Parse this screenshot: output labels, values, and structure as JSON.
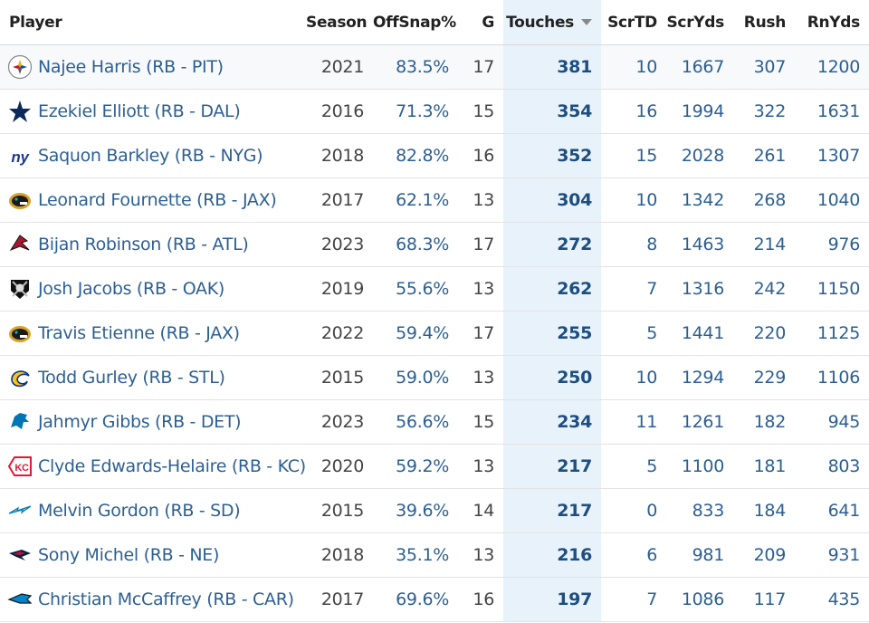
{
  "headers": {
    "player": "Player",
    "season": "Season",
    "offsnap": "OffSnap%",
    "g": "G",
    "touches": "Touches",
    "scrtd": "ScrTD",
    "scryds": "ScrYds",
    "rush": "Rush",
    "rnyds": "RnYds"
  },
  "rows": [
    {
      "player": "Najee Harris (RB - PIT)",
      "team_icon": "steelers-logo-icon",
      "season": "2021",
      "offsnap": "83.5%",
      "g": "17",
      "touches": "381",
      "scrtd": "10",
      "scryds": "1667",
      "rush": "307",
      "rnyds": "1200"
    },
    {
      "player": "Ezekiel Elliott (RB - DAL)",
      "team_icon": "cowboys-star-icon",
      "season": "2016",
      "offsnap": "71.3%",
      "g": "15",
      "touches": "354",
      "scrtd": "16",
      "scryds": "1994",
      "rush": "322",
      "rnyds": "1631"
    },
    {
      "player": "Saquon Barkley (RB - NYG)",
      "team_icon": "giants-logo-icon",
      "season": "2018",
      "offsnap": "82.8%",
      "g": "16",
      "touches": "352",
      "scrtd": "15",
      "scryds": "2028",
      "rush": "261",
      "rnyds": "1307"
    },
    {
      "player": "Leonard Fournette (RB - JAX)",
      "team_icon": "jaguars-logo-icon",
      "season": "2017",
      "offsnap": "62.1%",
      "g": "13",
      "touches": "304",
      "scrtd": "10",
      "scryds": "1342",
      "rush": "268",
      "rnyds": "1040"
    },
    {
      "player": "Bijan Robinson (RB - ATL)",
      "team_icon": "falcons-logo-icon",
      "season": "2023",
      "offsnap": "68.3%",
      "g": "17",
      "touches": "272",
      "scrtd": "8",
      "scryds": "1463",
      "rush": "214",
      "rnyds": "976"
    },
    {
      "player": "Josh Jacobs (RB - OAK)",
      "team_icon": "raiders-logo-icon",
      "season": "2019",
      "offsnap": "55.6%",
      "g": "13",
      "touches": "262",
      "scrtd": "7",
      "scryds": "1316",
      "rush": "242",
      "rnyds": "1150"
    },
    {
      "player": "Travis Etienne (RB - JAX)",
      "team_icon": "jaguars-logo-icon",
      "season": "2022",
      "offsnap": "59.4%",
      "g": "17",
      "touches": "255",
      "scrtd": "5",
      "scryds": "1441",
      "rush": "220",
      "rnyds": "1125"
    },
    {
      "player": "Todd Gurley (RB - STL)",
      "team_icon": "rams-logo-icon",
      "season": "2015",
      "offsnap": "59.0%",
      "g": "13",
      "touches": "250",
      "scrtd": "10",
      "scryds": "1294",
      "rush": "229",
      "rnyds": "1106"
    },
    {
      "player": "Jahmyr Gibbs (RB - DET)",
      "team_icon": "lions-logo-icon",
      "season": "2023",
      "offsnap": "56.6%",
      "g": "15",
      "touches": "234",
      "scrtd": "11",
      "scryds": "1261",
      "rush": "182",
      "rnyds": "945"
    },
    {
      "player": "Clyde Edwards-Helaire (RB - KC)",
      "team_icon": "chiefs-logo-icon",
      "season": "2020",
      "offsnap": "59.2%",
      "g": "13",
      "touches": "217",
      "scrtd": "5",
      "scryds": "1100",
      "rush": "181",
      "rnyds": "803"
    },
    {
      "player": "Melvin Gordon (RB - SD)",
      "team_icon": "chargers-logo-icon",
      "season": "2015",
      "offsnap": "39.6%",
      "g": "14",
      "touches": "217",
      "scrtd": "0",
      "scryds": "833",
      "rush": "184",
      "rnyds": "641"
    },
    {
      "player": "Sony Michel (RB - NE)",
      "team_icon": "patriots-logo-icon",
      "season": "2018",
      "offsnap": "35.1%",
      "g": "13",
      "touches": "216",
      "scrtd": "6",
      "scryds": "981",
      "rush": "209",
      "rnyds": "931"
    },
    {
      "player": "Christian McCaffrey (RB - CAR)",
      "team_icon": "panthers-logo-icon",
      "season": "2017",
      "offsnap": "69.6%",
      "g": "16",
      "touches": "197",
      "scrtd": "7",
      "scryds": "1086",
      "rush": "117",
      "rnyds": "435"
    }
  ],
  "colors": {
    "link_blue": "#2c5f93",
    "sorted_column_bg": "#e8f2fb"
  }
}
